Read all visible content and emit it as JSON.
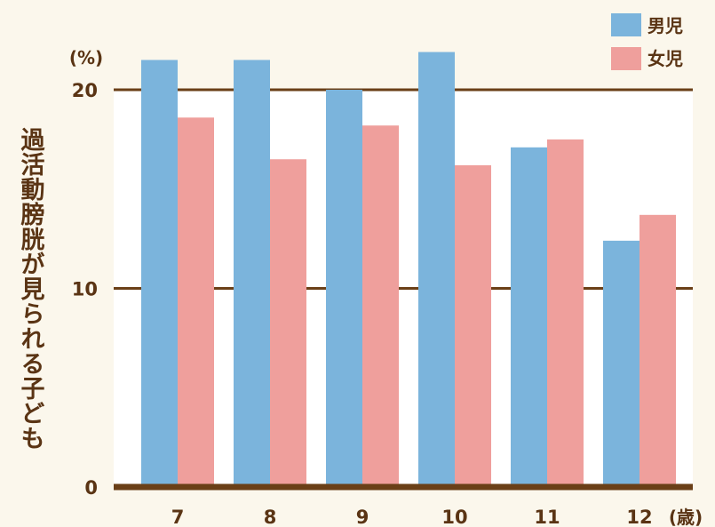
{
  "chart_data": {
    "type": "bar",
    "ylabel": "過活動膀胱が見られる子ども",
    "y_unit": "(%)",
    "x_unit": "(歳)",
    "categories": [
      "7",
      "8",
      "9",
      "10",
      "11",
      "12"
    ],
    "yticks": [
      "0",
      "10",
      "20"
    ],
    "ylim": [
      0,
      20
    ],
    "grid": true,
    "legend_placement": "top-right",
    "series": [
      {
        "name": "男児",
        "color": "#7bb4dc",
        "values": [
          21.5,
          21.5,
          20.0,
          21.9,
          17.1,
          12.4
        ]
      },
      {
        "name": "女児",
        "color": "#ef9f9c",
        "values": [
          18.6,
          16.5,
          18.2,
          16.2,
          17.5,
          13.7
        ]
      }
    ],
    "colors": {
      "background": "#fbf7ec",
      "axis": "#6a3f17",
      "text": "#5a3414"
    }
  }
}
